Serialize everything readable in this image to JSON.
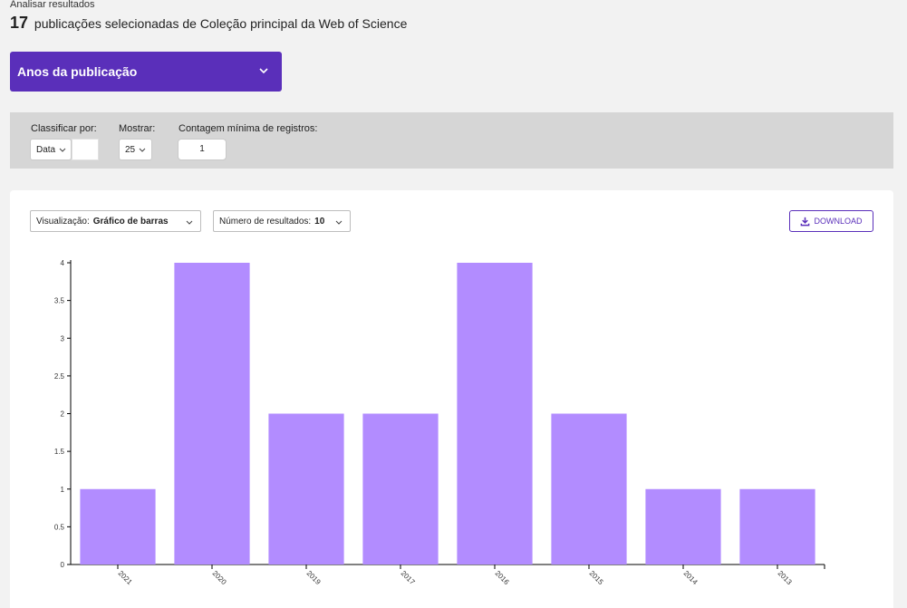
{
  "header": {
    "breadcrumb": "Analisar resultados",
    "count": "17",
    "summary": "publicações selecionadas de Coleção principal da Web of Science"
  },
  "facet": {
    "label": "Anos da publicação",
    "icon": "chevron-down-icon"
  },
  "controls": {
    "sort_label": "Classificar por:",
    "sort_value": "Data",
    "show_label": "Mostrar:",
    "show_value": "25",
    "min_count_label": "Contagem mínima de registros:",
    "min_count_value": "1"
  },
  "visualization": {
    "viz_label": "Visualização:",
    "viz_value": "Gráfico de barras",
    "results_label": "Número de resultados:",
    "results_value": "10",
    "download_label": "DOWNLOAD",
    "download_icon": "download-icon"
  },
  "chart_data": {
    "type": "bar",
    "categories": [
      "2021",
      "2020",
      "2019",
      "2017",
      "2016",
      "2015",
      "2014",
      "2013"
    ],
    "values": [
      1,
      4,
      2,
      2,
      4,
      2,
      1,
      1
    ],
    "yticks": [
      "0",
      "0.5",
      "1",
      "1.5",
      "2",
      "2.5",
      "3",
      "3.5",
      "4"
    ],
    "ylim": [
      0,
      4
    ],
    "bar_color": "#b28cff"
  },
  "colors": {
    "accent": "#5a2fba",
    "bar": "#b28cff"
  }
}
